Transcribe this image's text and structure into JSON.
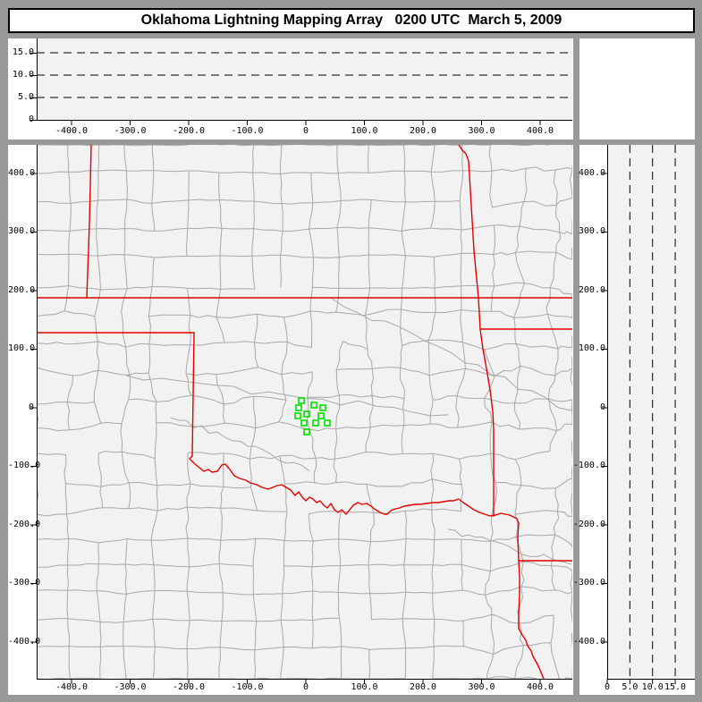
{
  "title_bar": {
    "title": "Oklahoma Lightning Mapping Array   0200 UTC  March 5, 2009"
  },
  "colors": {
    "frame_gray": "#999999",
    "panel_white": "#ffffff",
    "plot_bg": "#f2f2f2",
    "county_line": "#a8a8a8",
    "state_line": "#e10000",
    "station_green": "#00e000",
    "axis_black": "#000000"
  },
  "panels": {
    "top_alt_ew": {
      "y_tick_labels": [
        "15.0",
        "10.0",
        "5.0",
        "0"
      ],
      "y_tick_values_km": [
        15,
        10,
        5,
        0
      ],
      "gridline_values_km": [
        5,
        10,
        15
      ],
      "x_tick_labels": [
        "-400.0",
        "-300.0",
        "-200.0",
        "-100.0",
        "0",
        "100.0",
        "200.0",
        "300.0",
        "400.0"
      ],
      "x_tick_values_km": [
        -400,
        -300,
        -200,
        -100,
        0,
        100,
        200,
        300,
        400
      ]
    },
    "map": {
      "y_tick_labels": [
        "400.0",
        "300.0",
        "200.0",
        "100.0",
        "0",
        "-100.0",
        "-200.0",
        "-300.0",
        "-400.0"
      ],
      "y_tick_values_km": [
        400,
        300,
        200,
        100,
        0,
        -100,
        -200,
        -300,
        -400
      ],
      "x_tick_labels": [
        "-400.0",
        "-300.0",
        "-200.0",
        "-100.0",
        "0",
        "100.0",
        "200.0",
        "300.0",
        "400.0"
      ],
      "x_tick_values_km": [
        -400,
        -300,
        -200,
        -100,
        0,
        100,
        200,
        300,
        400
      ]
    },
    "right_alt_ns": {
      "x_tick_labels": [
        "0",
        "5.0",
        "10.0",
        "15.0"
      ],
      "x_tick_values_km": [
        0,
        5,
        10,
        15
      ],
      "gridline_values_km": [
        5,
        10,
        15
      ],
      "y_tick_labels": [
        "400.0",
        "300.0",
        "200.0",
        "100.0",
        "0",
        "-100.0",
        "-200.0",
        "-300.0",
        "-400.0"
      ],
      "y_tick_values_km": [
        400,
        300,
        200,
        100,
        0,
        -100,
        -200,
        -300,
        -400
      ]
    }
  },
  "chart_data": {
    "type": "scatter",
    "title": "Oklahoma Lightning Mapping Array 0200 UTC March 5, 2009",
    "layout": "XLMA-style triptych: altitude vs east-west (top), plan view map (main), altitude vs north-south (right); dashed altitude gridlines at 5, 10, 15 km",
    "lightning_source_points": [],
    "panels": [
      {
        "id": "alt_vs_ew",
        "x_range_km": [
          -455,
          456
        ],
        "y_range_km": [
          0,
          18.2
        ],
        "x_ticks": [
          -400,
          -300,
          -200,
          -100,
          0,
          100,
          200,
          300,
          400
        ],
        "y_ticks": [
          0,
          5,
          10,
          15
        ],
        "gridlines_y_km": [
          5,
          10,
          15
        ],
        "points": []
      },
      {
        "id": "plan_view",
        "x_range_km": [
          -455,
          456
        ],
        "y_range_km": [
          -463,
          448
        ],
        "x_ticks": [
          -400,
          -300,
          -200,
          -100,
          0,
          100,
          200,
          300,
          400
        ],
        "y_ticks": [
          400,
          300,
          200,
          100,
          0,
          -100,
          -200,
          -300,
          -400
        ],
        "map_features": "Oklahoma county map; gray county lines; red state borders (KS/CO, KS/MO, OK panhandle, 100W Texas line, Red River, OK/AR, TX/AR, AR/LA, Sabine)",
        "station_markers_km": [
          [
            -7.6,
            11.5
          ],
          [
            -12.2,
            -0.8
          ],
          [
            13.7,
            3.8
          ],
          [
            29.0,
            -0.8
          ],
          [
            -13.7,
            -14.5
          ],
          [
            1.5,
            -11.5
          ],
          [
            26.0,
            -14.5
          ],
          [
            -3.1,
            -26.7
          ],
          [
            16.8,
            -26.7
          ],
          [
            36.6,
            -26.7
          ],
          [
            1.5,
            -42.0
          ]
        ],
        "points": []
      },
      {
        "id": "alt_vs_ns",
        "x_range_km": [
          0,
          19.3
        ],
        "y_range_km": [
          -463,
          448
        ],
        "x_ticks": [
          0,
          5,
          10,
          15
        ],
        "y_ticks": [
          400,
          300,
          200,
          100,
          0,
          -100,
          -200,
          -300,
          -400
        ],
        "gridlines_x_km": [
          5,
          10,
          15
        ],
        "points": []
      }
    ]
  }
}
